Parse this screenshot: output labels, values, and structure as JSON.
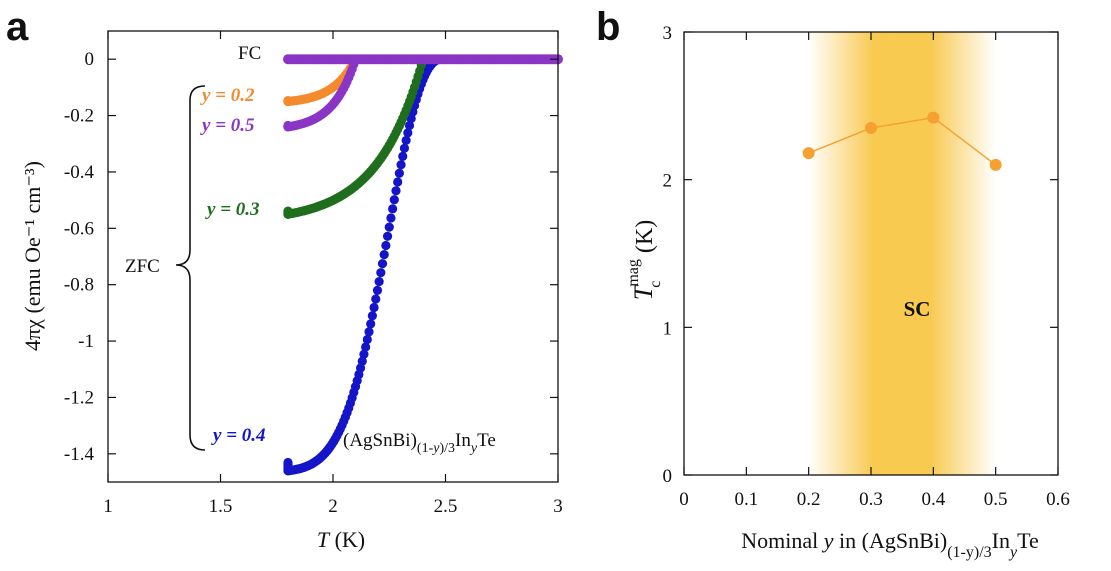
{
  "panels": {
    "a": "a",
    "b": "b"
  },
  "chart_data": [
    {
      "type": "scatter",
      "xlabel_italic": "T",
      "xlabel_unit": " (K)",
      "ylabel": "4πχ (emu Oe⁻¹ cm⁻³)",
      "xlim": [
        1,
        3
      ],
      "ylim": [
        -1.5,
        0.1
      ],
      "xticks": [
        1,
        1.5,
        2,
        2.5,
        3
      ],
      "xtick_labels": [
        "1",
        "1.5",
        "2",
        "2.5",
        "3"
      ],
      "yticks": [
        0,
        -0.2,
        -0.4,
        -0.6,
        -0.8,
        -1,
        -1.2,
        -1.4
      ],
      "ytick_labels": [
        "0",
        "-0.2",
        "-0.4",
        "-0.6",
        "-0.8",
        "-1",
        "-1.2",
        "-1.4"
      ],
      "grid": false,
      "series": [
        {
          "name": "y = 0.2",
          "color": "#f58a2d",
          "ymin": -0.15,
          "tc": 2.1,
          "width": 0.12
        },
        {
          "name": "y = 0.5",
          "color": "#8a35c6",
          "ymin": -0.24,
          "tc": 2.1,
          "width": 0.1
        },
        {
          "name": "y = 0.3",
          "color": "#1e6e1e",
          "ymin": -0.55,
          "tc": 2.4,
          "width": 0.22
        },
        {
          "name": "y = 0.4",
          "color": "#1414c8",
          "ymin": -1.46,
          "tc": 2.48,
          "width": 0.22
        }
      ],
      "fc_color": "#8a35c6",
      "annotations": {
        "fc": "FC",
        "zfc": "ZFC",
        "y02": {
          "prefix": "y",
          "text": " =  0.2"
        },
        "y05": {
          "prefix": "y",
          "text": " =  0.5"
        },
        "y03": {
          "prefix": "y",
          "text": " =  0.3"
        },
        "y04": {
          "prefix": "y",
          "text": " =  0.4"
        },
        "compound": {
          "base": "(AgSnBi)",
          "sub1": "(1-",
          "suby": "y",
          "sub2": ")/3",
          "mid": "In",
          "suby2": "y",
          "end": "Te"
        }
      }
    },
    {
      "type": "line",
      "x": [
        0.2,
        0.3,
        0.4,
        0.5
      ],
      "y": [
        2.18,
        2.35,
        2.42,
        2.1
      ],
      "color": "#f5a030",
      "xlim": [
        0,
        0.6
      ],
      "ylim": [
        0,
        3
      ],
      "xticks": [
        0,
        0.1,
        0.2,
        0.3,
        0.4,
        0.5,
        0.6
      ],
      "xtick_labels": [
        "0",
        "0.1",
        "0.2",
        "0.3",
        "0.4",
        "0.5",
        "0.6"
      ],
      "yticks": [
        0,
        1,
        2,
        3
      ],
      "ytick_labels": [
        "0",
        "1",
        "2",
        "3"
      ],
      "grid": false,
      "region": {
        "x": [
          0.2,
          0.5
        ],
        "label": "SC",
        "color": "#f7c030"
      },
      "xlabel": {
        "pre": "Nominal ",
        "italic": "y",
        "post": " in (AgSnBi)",
        "sub": "(1-y)/3",
        "mid": "In",
        "sub2": "y",
        "end": "Te"
      },
      "ylabel": {
        "italic": "T",
        "sub": "c",
        "sup": "mag",
        "unit": " (K)"
      }
    }
  ]
}
